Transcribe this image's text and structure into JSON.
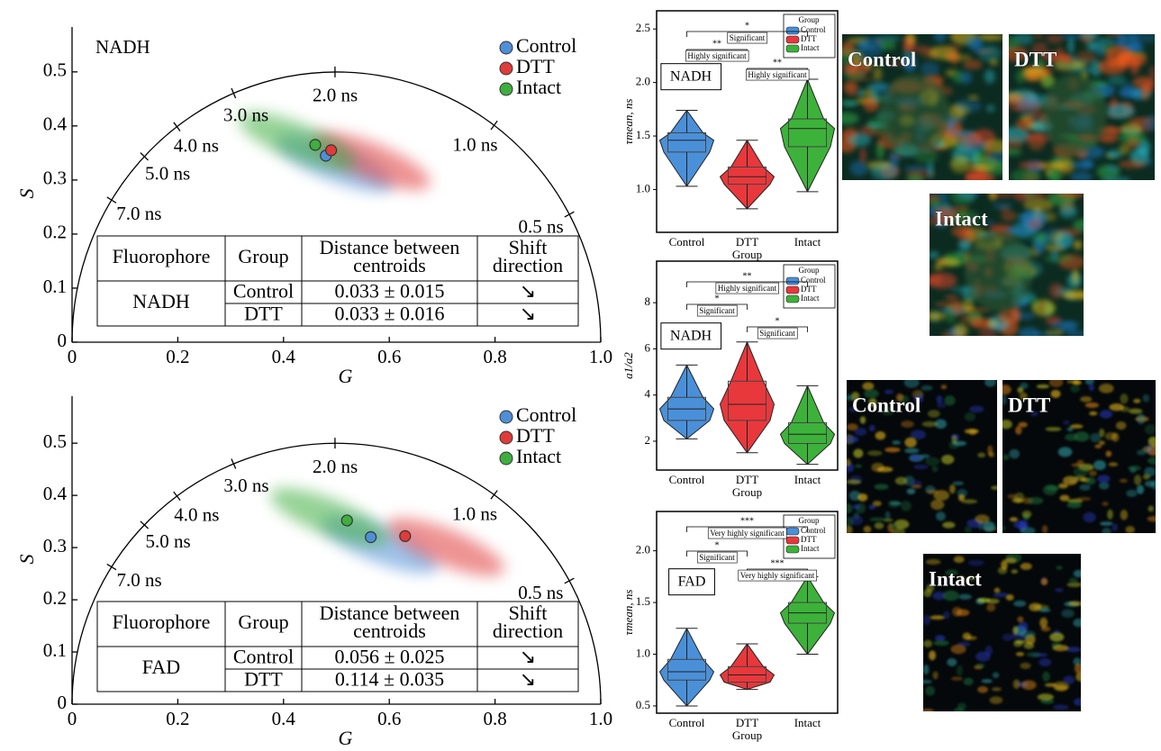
{
  "chart_data": [
    {
      "type": "phasor",
      "panel_label": "NADH",
      "xlabel": "G",
      "ylabel": "S",
      "xlim": [
        0,
        1
      ],
      "ylim": [
        0,
        0.583
      ],
      "xticks": [
        0,
        0.2,
        0.4,
        0.6,
        0.8,
        {
          "value": 1,
          "label": "1.0"
        }
      ],
      "yticks": [
        0,
        0.1,
        0.2,
        0.3,
        0.4,
        0.5
      ],
      "lifetime_ticks": [
        {
          "value": 0.5,
          "label": "0.5 ns"
        },
        {
          "value": 1,
          "label": "1.0 ns"
        },
        {
          "value": 2,
          "label": "2.0 ns"
        },
        {
          "value": 3,
          "label": "3.0 ns"
        },
        {
          "value": 4,
          "label": "4.0 ns"
        },
        {
          "value": 5,
          "label": "5.0 ns"
        },
        {
          "value": 7,
          "label": "7.0 ns"
        }
      ],
      "legend": "upper right",
      "series": [
        {
          "name": "Control",
          "color": "#4f8fd6",
          "x": 0.48,
          "y": 0.345
        },
        {
          "name": "DTT",
          "color": "#e03b3b",
          "x": 0.49,
          "y": 0.355
        },
        {
          "name": "Intact",
          "color": "#3fae3f",
          "x": 0.46,
          "y": 0.365
        }
      ],
      "table": {
        "header": [
          [
            "Fluorophore"
          ],
          [
            "Group"
          ],
          [
            "Distance between",
            "centroids"
          ],
          [
            "Shift",
            "direction"
          ]
        ],
        "fluorophore": "NADH",
        "rows": [
          [
            "Control",
            "0.033 ± 0.015",
            "↘"
          ],
          [
            "DTT",
            "0.033 ± 0.016",
            "↘"
          ]
        ]
      }
    },
    {
      "type": "phasor",
      "xlabel": "G",
      "ylabel": "S",
      "xlim": [
        0,
        1
      ],
      "ylim": [
        0,
        0.59
      ],
      "xticks": [
        0,
        0.2,
        0.4,
        0.6,
        0.8,
        {
          "value": 1,
          "label": "1.0"
        }
      ],
      "yticks": [
        0,
        0.1,
        0.2,
        0.3,
        0.4,
        0.5
      ],
      "lifetime_ticks": [
        {
          "value": 0.5,
          "label": "0.5 ns"
        },
        {
          "value": 1,
          "label": "1.0 ns"
        },
        {
          "value": 2,
          "label": "2.0 ns"
        },
        {
          "value": 3,
          "label": "3.0 ns"
        },
        {
          "value": 4,
          "label": "4.0 ns"
        },
        {
          "value": 5,
          "label": "5.0 ns"
        },
        {
          "value": 7,
          "label": "7.0 ns"
        }
      ],
      "legend": "upper right",
      "series": [
        {
          "name": "Control",
          "color": "#4f8fd6",
          "x": 0.565,
          "y": 0.32
        },
        {
          "name": "DTT",
          "color": "#e03b3b",
          "x": 0.63,
          "y": 0.322
        },
        {
          "name": "Intact",
          "color": "#3fae3f",
          "x": 0.52,
          "y": 0.352
        }
      ],
      "table": {
        "header": [
          [
            "Fluorophore"
          ],
          [
            "Group"
          ],
          [
            "Distance between",
            "centroids"
          ],
          [
            "Shift",
            "direction"
          ]
        ],
        "fluorophore": "FAD",
        "rows": [
          [
            "Control",
            "0.056 ± 0.025",
            "↘"
          ],
          [
            "DTT",
            "0.114 ± 0.035",
            "↘"
          ]
        ]
      }
    },
    {
      "type": "violin",
      "panel_label": "NADH",
      "ylabel": "τmean, ns",
      "xlabel": "Group",
      "categories": [
        "Control",
        "DTT",
        "Intact"
      ],
      "legend_title": "Group",
      "legend": "upper right",
      "ylim": [
        0.6,
        2.67
      ],
      "yticks": [
        {
          "value": 1,
          "label": "1.0"
        },
        1.5,
        {
          "value": 2,
          "label": "2.0"
        },
        2.5
      ],
      "series": [
        {
          "name": "Control",
          "color": "#4a90d9",
          "min": 1.03,
          "q1": 1.35,
          "median": 1.46,
          "q3": 1.53,
          "max": 1.74
        },
        {
          "name": "DTT",
          "color": "#e8383c",
          "min": 0.82,
          "q1": 1.05,
          "median": 1.12,
          "q3": 1.21,
          "max": 1.46
        },
        {
          "name": "Intact",
          "color": "#3db23a",
          "min": 0.98,
          "q1": 1.4,
          "median": 1.57,
          "q3": 1.66,
          "max": 2.03
        }
      ],
      "comparisons": [
        {
          "stars": "*",
          "label": "Significant"
        },
        {
          "stars": "**",
          "label": "Highly significant"
        },
        {
          "stars": "**",
          "label": "Highly significant"
        }
      ]
    },
    {
      "type": "violin",
      "panel_label": "NADH",
      "ylabel": "a1/a2",
      "xlabel": "Group",
      "categories": [
        "Control",
        "DTT",
        "Intact"
      ],
      "legend_title": "Group",
      "legend": "upper right",
      "ylim": [
        0.75,
        9.8
      ],
      "yticks": [
        2,
        4,
        6,
        8
      ],
      "series": [
        {
          "name": "Control",
          "color": "#4a90d9",
          "min": 2.1,
          "q1": 2.9,
          "median": 3.4,
          "q3": 3.9,
          "max": 5.3
        },
        {
          "name": "DTT",
          "color": "#e8383c",
          "min": 1.5,
          "q1": 2.9,
          "median": 3.6,
          "q3": 4.6,
          "max": 6.3
        },
        {
          "name": "Intact",
          "color": "#3db23a",
          "min": 1.0,
          "q1": 1.9,
          "median": 2.3,
          "q3": 2.8,
          "max": 4.4
        }
      ],
      "comparisons": [
        {
          "stars": "**",
          "label": "Highly significant"
        },
        {
          "stars": "*",
          "label": "Significant"
        },
        {
          "stars": "*",
          "label": "Significant"
        }
      ]
    },
    {
      "type": "violin",
      "panel_label": "FAD",
      "ylabel": "τmean, ns",
      "xlabel": "Group",
      "categories": [
        "Control",
        "DTT",
        "Intact"
      ],
      "legend_title": "Group",
      "legend": "upper right",
      "ylim": [
        0.43,
        2.38
      ],
      "yticks": [
        0.5,
        {
          "value": 1,
          "label": "1.0"
        },
        1.5,
        {
          "value": 2,
          "label": "2.0"
        }
      ],
      "series": [
        {
          "name": "Control",
          "color": "#4a90d9",
          "min": 0.5,
          "q1": 0.75,
          "median": 0.83,
          "q3": 0.95,
          "max": 1.25
        },
        {
          "name": "DTT",
          "color": "#e8383c",
          "min": 0.66,
          "q1": 0.73,
          "median": 0.8,
          "q3": 0.88,
          "max": 1.1
        },
        {
          "name": "Intact",
          "color": "#3db23a",
          "min": 1.0,
          "q1": 1.3,
          "median": 1.4,
          "q3": 1.5,
          "max": 1.75
        }
      ],
      "comparisons": [
        {
          "stars": "***",
          "label": "Very highly significant"
        },
        {
          "stars": "*",
          "label": "Significant"
        },
        {
          "stars": "***",
          "label": "Very highly significant"
        }
      ]
    }
  ],
  "images": [
    {
      "label": "Control"
    },
    {
      "label": "DTT"
    },
    {
      "label": "Intact"
    },
    {
      "label": "Control"
    },
    {
      "label": "DTT"
    },
    {
      "label": "Intact"
    }
  ]
}
